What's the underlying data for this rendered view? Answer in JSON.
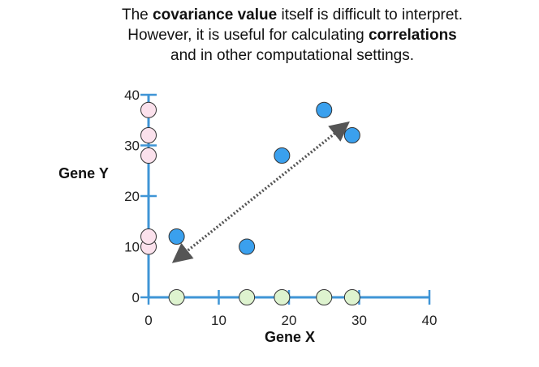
{
  "caption": {
    "line1_a": "The ",
    "line1_b": "covariance value",
    "line1_c": " itself is difficult to interpret.",
    "line2_a": "However, it is useful for calculating ",
    "line2_b": "correlations",
    "line3": "and in other computational settings."
  },
  "chart_data": {
    "type": "scatter",
    "title": "",
    "xlabel": "Gene X",
    "ylabel": "Gene Y",
    "xlim": [
      0,
      40
    ],
    "ylim": [
      0,
      40
    ],
    "x_ticks": [
      0,
      10,
      20,
      30,
      40
    ],
    "y_ticks": [
      0,
      10,
      20,
      30,
      40
    ],
    "grid": false,
    "series": [
      {
        "role": "data points",
        "color": "#3aa0ee",
        "points": [
          [
            4,
            12
          ],
          [
            14,
            10
          ],
          [
            19,
            28
          ],
          [
            25,
            37
          ],
          [
            29,
            32
          ]
        ]
      },
      {
        "role": "projection on Gene Y axis",
        "color": "#fbe1ec",
        "points": [
          [
            0,
            10
          ],
          [
            0,
            12
          ],
          [
            0,
            28
          ],
          [
            0,
            32
          ],
          [
            0,
            37
          ]
        ]
      },
      {
        "role": "projection on Gene X axis",
        "color": "#def3cf",
        "points": [
          [
            4,
            0
          ],
          [
            14,
            0
          ],
          [
            19,
            0
          ],
          [
            25,
            0
          ],
          [
            29,
            0
          ]
        ]
      }
    ],
    "trend_arrow": {
      "from": [
        4,
        7.5
      ],
      "to": [
        28,
        34
      ],
      "style": "dotted",
      "heads": "both",
      "color": "#555555"
    },
    "colors": {
      "axis": "#3f95d6"
    }
  }
}
